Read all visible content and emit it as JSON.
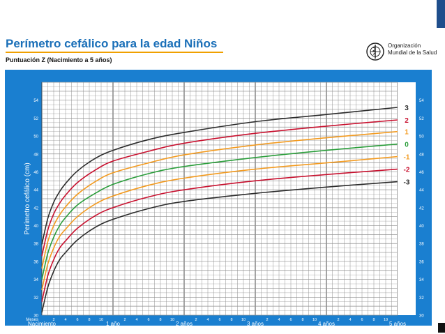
{
  "header": {
    "title": "Perímetro cefálico para la edad  Niños",
    "subtitle": "Puntuación Z (Nacimiento a 5 años)",
    "org_line1": "Organización",
    "org_line2": "Mundial de la Salud"
  },
  "colors": {
    "panel": "#1a7fd0",
    "plot_bg": "#ffffff",
    "grid": "#909090",
    "title": "#1a6fb8",
    "accent": "#f0a000",
    "brand_block": "#1f4e8c"
  },
  "chart_data": {
    "type": "line",
    "title": "Perímetro cefálico para la edad  Niños",
    "subtitle": "Puntuación Z (Nacimiento a 5 años)",
    "xlabel": "",
    "ylabel": "Perímetro cefálico (cm)",
    "x_unit_label": "Meses",
    "xlim": [
      0,
      60
    ],
    "ylim": [
      30,
      56
    ],
    "y_ticks": [
      30,
      32,
      34,
      36,
      38,
      40,
      42,
      44,
      46,
      48,
      50,
      52,
      54
    ],
    "x_minor_labels": [
      "2",
      "4",
      "6",
      "8",
      "10"
    ],
    "x_major_ticks": [
      {
        "month": 0,
        "label": "Nacimiento"
      },
      {
        "month": 12,
        "label": "1 año"
      },
      {
        "month": 24,
        "label": "2 años"
      },
      {
        "month": 36,
        "label": "3 años"
      },
      {
        "month": 48,
        "label": "4 años"
      },
      {
        "month": 60,
        "label": "5 años"
      }
    ],
    "grid": true,
    "x": [
      0,
      1,
      2,
      3,
      4,
      6,
      9,
      12,
      18,
      24,
      36,
      48,
      60
    ],
    "series": [
      {
        "name": "3",
        "color": "#2b2b2b",
        "values": [
          37.9,
          40.8,
          42.6,
          43.8,
          44.7,
          46.1,
          47.5,
          48.4,
          49.6,
          50.4,
          51.6,
          52.4,
          53.2
        ]
      },
      {
        "name": "2",
        "color": "#c8102e",
        "values": [
          36.6,
          39.5,
          41.3,
          42.5,
          43.4,
          44.8,
          46.2,
          47.2,
          48.3,
          49.2,
          50.3,
          51.1,
          51.8
        ]
      },
      {
        "name": "1",
        "color": "#f39a1e",
        "values": [
          35.2,
          38.2,
          40.0,
          41.2,
          42.1,
          43.5,
          44.9,
          45.9,
          47.0,
          47.9,
          49.0,
          49.8,
          50.5
        ]
      },
      {
        "name": "0",
        "color": "#2a9d3a",
        "values": [
          34.0,
          36.9,
          38.7,
          40.0,
          40.9,
          42.3,
          43.6,
          44.6,
          45.8,
          46.6,
          47.6,
          48.4,
          49.1
        ]
      },
      {
        "name": "-1",
        "color": "#f39a1e",
        "values": [
          32.8,
          35.7,
          37.5,
          38.8,
          39.6,
          41.0,
          42.4,
          43.3,
          44.5,
          45.3,
          46.3,
          47.0,
          47.7
        ]
      },
      {
        "name": "-2",
        "color": "#c8102e",
        "values": [
          31.5,
          34.4,
          36.2,
          37.5,
          38.3,
          39.7,
          41.1,
          42.0,
          43.2,
          44.0,
          45.0,
          45.7,
          46.3
        ]
      },
      {
        "name": "-3",
        "color": "#2b2b2b",
        "values": [
          30.3,
          33.1,
          34.9,
          36.2,
          37.0,
          38.4,
          39.8,
          40.7,
          41.9,
          42.7,
          43.6,
          44.3,
          44.9
        ]
      }
    ]
  }
}
